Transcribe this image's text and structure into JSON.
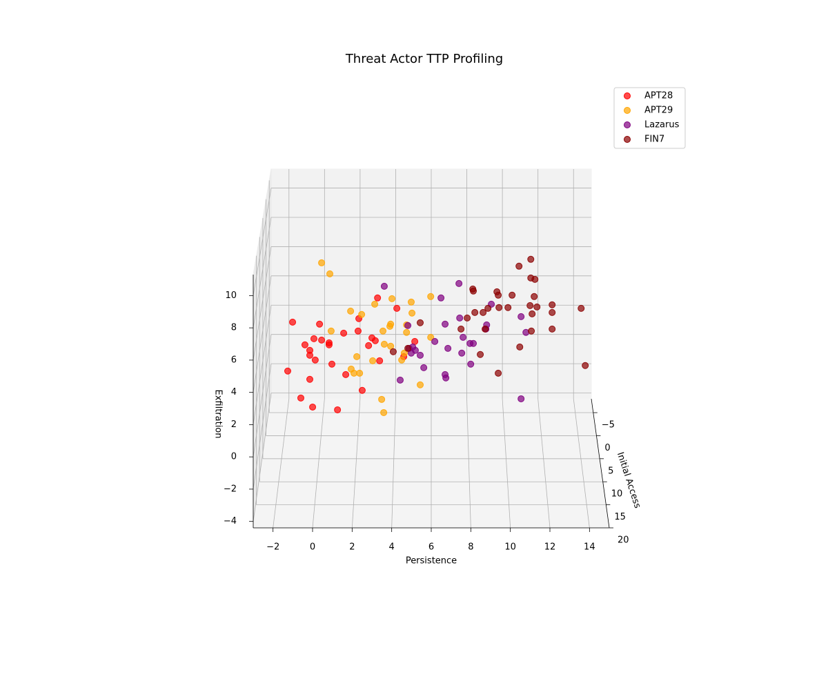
{
  "chart_data": {
    "type": "scatter3d",
    "title": "Threat Actor TTP Profiling",
    "xlabel": "Persistence",
    "ylabel": "Initial Access",
    "zlabel": "Exfiltration",
    "xlim": [
      -3,
      15
    ],
    "ylim": [
      -8,
      20
    ],
    "zlim": [
      -4.4,
      11.3
    ],
    "xticks": [
      {
        "value": -2,
        "label": "−2"
      },
      0,
      2,
      4,
      6,
      8,
      10,
      12,
      14
    ],
    "yticks": [
      {
        "value": -5,
        "label": "−5"
      },
      0,
      5,
      10,
      15,
      20
    ],
    "zticks": [
      {
        "value": -4,
        "label": "−4"
      },
      {
        "value": -2,
        "label": "−2"
      },
      0,
      2,
      4,
      6,
      8,
      10
    ],
    "grid": true,
    "legend": "upper right",
    "series": [
      {
        "name": "APT28",
        "color": "#ff0000",
        "x": [
          -1.41,
          0.03,
          -0.75,
          -0.27,
          0.14,
          -0.49,
          -0.49,
          -0.2,
          0.54,
          0.54,
          0.69,
          -1.67,
          -0.49,
          -0.97,
          -0.34,
          0.99,
          1.32,
          2.09,
          2.13,
          3.13,
          4.16,
          2.83,
          3.01,
          2.65,
          3.24,
          1.43,
          2.31,
          5.12,
          4.53
        ],
        "y": [
          5,
          5,
          5,
          5,
          5,
          5,
          5,
          5,
          5,
          5,
          5,
          5,
          5,
          5,
          5,
          5,
          5,
          5,
          5,
          5,
          5,
          5,
          5,
          5,
          5,
          5,
          5,
          5,
          5
        ],
        "z": [
          4.51,
          4.38,
          3.03,
          3.43,
          3.34,
          2.67,
          2.35,
          2.04,
          3.03,
          3.16,
          1.77,
          1.32,
          0.78,
          -0.44,
          -1.03,
          -1.21,
          3.79,
          3.93,
          4.74,
          6.09,
          5.41,
          3.48,
          3.3,
          2.98,
          1.99,
          1.09,
          0.06,
          3.25,
          2.26
        ]
      },
      {
        "name": "APT29",
        "color": "#ffa500",
        "x": [
          0.14,
          0.58,
          1.69,
          2.28,
          2.98,
          3.9,
          4.93,
          4.97,
          5.97,
          0.65,
          3.42,
          3.79,
          3.83,
          4.68,
          4.68,
          3.49,
          3.83,
          2.02,
          2.87,
          4.42,
          4.56,
          5.97,
          1.72,
          1.87,
          2.17,
          3.35,
          3.46,
          5.41
        ],
        "y": [
          5,
          5,
          5,
          5,
          5,
          5,
          5,
          5,
          5,
          5,
          5,
          5,
          5,
          5,
          5,
          5,
          5,
          5,
          5,
          5,
          5,
          5,
          5,
          5,
          5,
          5,
          5,
          5
        ],
        "z": [
          8.38,
          7.66,
          5.23,
          5.01,
          5.68,
          6.04,
          5.82,
          5.1,
          6.18,
          3.93,
          3.93,
          4.24,
          4.38,
          4.33,
          3.84,
          3.07,
          2.94,
          2.26,
          1.99,
          2.04,
          2.49,
          3.52,
          1.45,
          1.18,
          1.18,
          -0.53,
          -1.39,
          0.42
        ]
      },
      {
        "name": "Lazarus",
        "color": "#800080",
        "x": [
          3.49,
          7.48,
          6.52,
          9.21,
          4.75,
          6.74,
          7.52,
          8.96,
          7.7,
          6.19,
          8.07,
          8.25,
          8.92,
          10.8,
          11.06,
          6.89,
          7.63,
          8.11,
          6.74,
          6.78,
          4.34,
          5.6,
          5.15,
          5.41,
          4.82,
          4.93,
          10.8,
          5.01
        ],
        "y": [
          5,
          5,
          5,
          5,
          5,
          5,
          5,
          5,
          5,
          5,
          5,
          5,
          5,
          5,
          5,
          5,
          5,
          5,
          5,
          5,
          5,
          5,
          5,
          5,
          5,
          5,
          5,
          5
        ],
        "z": [
          6.85,
          7.03,
          6.09,
          5.68,
          4.29,
          4.38,
          4.78,
          4.33,
          3.52,
          3.25,
          3.12,
          3.12,
          4.06,
          4.87,
          3.84,
          2.8,
          2.49,
          1.77,
          1.09,
          0.87,
          0.73,
          1.54,
          2.67,
          2.35,
          2.8,
          2.49,
          -0.49,
          2.89
        ]
      },
      {
        "name": "FIN7",
        "color": "#8b0000",
        "x": [
          10.69,
          11.32,
          11.32,
          11.54,
          8.22,
          8.25,
          9.51,
          9.58,
          10.32,
          11.5,
          12.46,
          14.01,
          11.28,
          11.65,
          10.1,
          9.62,
          9.03,
          8.77,
          8.33,
          7.92,
          12.46,
          11.39,
          7.59,
          8.88,
          5.41,
          11.35,
          12.46,
          8.62,
          10.73,
          14.23,
          9.58,
          3.97,
          4.75
        ],
        "y": [
          5,
          5,
          5,
          5,
          5,
          5,
          5,
          5,
          5,
          5,
          5,
          5,
          5,
          5,
          5,
          5,
          5,
          5,
          5,
          5,
          5,
          5,
          5,
          5,
          5,
          5,
          5,
          5,
          5,
          5,
          5,
          5,
          5
        ],
        "z": [
          8.16,
          8.61,
          7.39,
          7.3,
          6.67,
          6.54,
          6.49,
          6.27,
          6.27,
          6.18,
          5.64,
          5.41,
          5.59,
          5.5,
          5.46,
          5.46,
          5.41,
          5.14,
          5.14,
          4.78,
          5.14,
          5.05,
          4.06,
          4.06,
          4.47,
          3.93,
          4.06,
          2.4,
          2.89,
          1.68,
          1.18,
          2.58,
          2.8
        ]
      }
    ]
  }
}
